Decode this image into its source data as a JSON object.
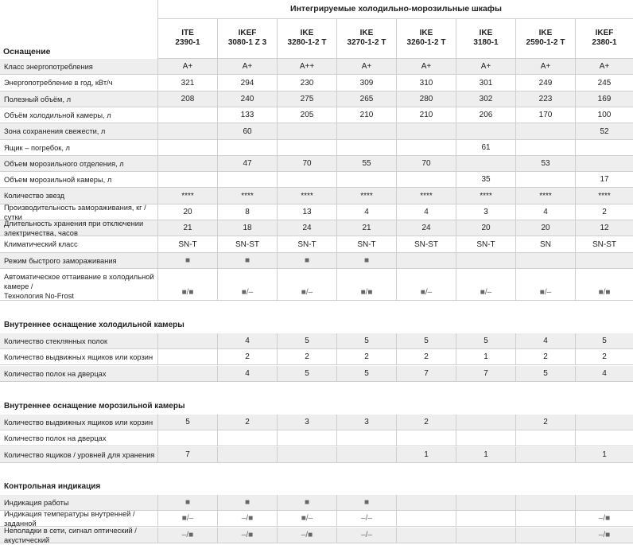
{
  "title": "Интегрируемые холодильно-морозильные шкафы",
  "equipment_label": "Оснащение",
  "models": [
    [
      "ITE",
      "2390-1"
    ],
    [
      "IKEF",
      "3080-1 Z 3"
    ],
    [
      "IKE",
      "3280-1-2 T"
    ],
    [
      "IKE",
      "3270-1-2 T"
    ],
    [
      "IKE",
      "3260-1-2 T"
    ],
    [
      "IKE",
      "3180-1"
    ],
    [
      "IKE",
      "2590-1-2 T"
    ],
    [
      "IKEF",
      "2380-1"
    ]
  ],
  "rows1": [
    [
      "Класс энергопотребления",
      "A+",
      "A+",
      "A++",
      "A+",
      "A+",
      "A+",
      "A+",
      "A+"
    ],
    [
      "Энергопотребление в год, кВт/ч",
      "321",
      "294",
      "230",
      "309",
      "310",
      "301",
      "249",
      "245"
    ],
    [
      "Полезный объём, л",
      "208",
      "240",
      "275",
      "265",
      "280",
      "302",
      "223",
      "169"
    ],
    [
      "Объём холодильной камеры, л",
      "",
      "133",
      "205",
      "210",
      "210",
      "206",
      "170",
      "100"
    ],
    [
      "Зона сохранения свежести, л",
      "",
      "60",
      "",
      "",
      "",
      "",
      "",
      "52"
    ],
    [
      "Ящик – погребок, л",
      "",
      "",
      "",
      "",
      "",
      "61",
      "",
      ""
    ],
    [
      "Объем морозильного отделения, л",
      "",
      "47",
      "70",
      "55",
      "70",
      "",
      "53",
      ""
    ],
    [
      "Объем морозильной камеры, л",
      "",
      "",
      "",
      "",
      "",
      "35",
      "",
      "17"
    ],
    [
      "Количество звезд",
      "****",
      "****",
      "****",
      "****",
      "****",
      "****",
      "****",
      "****"
    ],
    [
      "Производительность замораживания, кг / сутки",
      "20",
      "8",
      "13",
      "4",
      "4",
      "3",
      "4",
      "2"
    ],
    [
      "Длительность хранения при отключении электричества, часов",
      "21",
      "18",
      "24",
      "21",
      "24",
      "20",
      "20",
      "12"
    ],
    [
      "Климатический класс",
      "SN-T",
      "SN-ST",
      "SN-T",
      "SN-T",
      "SN-ST",
      "SN-T",
      "SN",
      "SN-ST"
    ],
    [
      "Режим быстрого замораживания",
      "■",
      "■",
      "■",
      "■",
      "",
      "",
      "",
      ""
    ]
  ],
  "tall_row": {
    "label1": "Автоматическое оттаивание в холодильной камере /",
    "label2": "Технология No-Frost",
    "values": [
      "■/■",
      "■/–",
      "■/–",
      "■/■",
      "■/–",
      "■/–",
      "■/–",
      "■/■"
    ]
  },
  "section2": "Внутреннее оснащение холодильной камеры",
  "rows2": [
    [
      "Количество стеклянных полок",
      "",
      "4",
      "5",
      "5",
      "5",
      "5",
      "4",
      "5"
    ],
    [
      "Количество выдвижных ящиков или корзин",
      "",
      "2",
      "2",
      "2",
      "2",
      "1",
      "2",
      "2"
    ],
    [
      "Количество полок на дверцах",
      "",
      "4",
      "5",
      "5",
      "7",
      "7",
      "5",
      "4"
    ]
  ],
  "section3": "Внутреннее оснащение морозильной камеры",
  "rows3": [
    [
      "Количество выдвижных ящиков или корзин",
      "5",
      "2",
      "3",
      "3",
      "2",
      "",
      "2",
      ""
    ],
    [
      "Количество полок на дверцах",
      "",
      "",
      "",
      "",
      "",
      "",
      "",
      ""
    ],
    [
      "Количество ящиков / уровней для хранения",
      "7",
      "",
      "",
      "",
      "1",
      "1",
      "",
      "1"
    ]
  ],
  "section4": "Контрольная индикация",
  "rows4": [
    [
      "Индикация работы",
      "■",
      "■",
      "■",
      "■",
      "",
      "",
      "",
      ""
    ],
    [
      "Индикация температуры внутренней / заданной",
      "■/–",
      "–/■",
      "■/–",
      "–/–",
      "",
      "",
      "",
      "–/■"
    ],
    [
      "Неполадки в сети, сигнал оптический / акустический",
      "–/■",
      "–/■",
      "–/■",
      "–/–",
      "",
      "",
      "",
      "–/■"
    ]
  ]
}
